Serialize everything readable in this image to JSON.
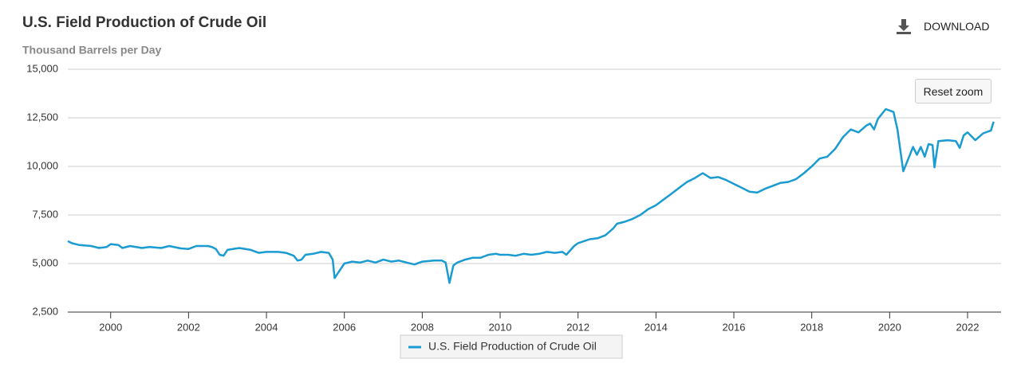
{
  "chart_data": {
    "type": "line",
    "title": "U.S. Field Production of Crude Oil",
    "subtitle": "Thousand Barrels per Day",
    "x": [
      1998.9,
      1999.0,
      1999.2,
      1999.5,
      1999.7,
      1999.9,
      2000.0,
      2000.2,
      2000.3,
      2000.5,
      2000.8,
      2001.0,
      2001.3,
      2001.5,
      2001.8,
      2002.0,
      2002.2,
      2002.5,
      2002.6,
      2002.7,
      2002.8,
      2002.9,
      2003.0,
      2003.3,
      2003.6,
      2003.8,
      2004.0,
      2004.3,
      2004.5,
      2004.7,
      2004.8,
      2004.9,
      2005.0,
      2005.2,
      2005.4,
      2005.6,
      2005.7,
      2005.75,
      2005.9,
      2006.0,
      2006.2,
      2006.4,
      2006.6,
      2006.8,
      2007.0,
      2007.2,
      2007.4,
      2007.6,
      2007.8,
      2008.0,
      2008.3,
      2008.5,
      2008.6,
      2008.7,
      2008.8,
      2008.9,
      2009.1,
      2009.3,
      2009.5,
      2009.7,
      2009.9,
      2010.0,
      2010.2,
      2010.4,
      2010.6,
      2010.8,
      2011.0,
      2011.2,
      2011.4,
      2011.6,
      2011.7,
      2011.9,
      2012.0,
      2012.3,
      2012.5,
      2012.7,
      2012.9,
      2013.0,
      2013.2,
      2013.4,
      2013.6,
      2013.8,
      2014.0,
      2014.2,
      2014.4,
      2014.6,
      2014.8,
      2015.0,
      2015.2,
      2015.4,
      2015.6,
      2015.8,
      2016.0,
      2016.2,
      2016.4,
      2016.6,
      2016.8,
      2017.0,
      2017.2,
      2017.4,
      2017.6,
      2017.8,
      2018.0,
      2018.2,
      2018.4,
      2018.6,
      2018.8,
      2019.0,
      2019.2,
      2019.4,
      2019.5,
      2019.6,
      2019.7,
      2019.9,
      2020.1,
      2020.2,
      2020.35,
      2020.5,
      2020.6,
      2020.7,
      2020.8,
      2020.9,
      2021.0,
      2021.1,
      2021.15,
      2021.25,
      2021.5,
      2021.7,
      2021.8,
      2021.9,
      2022.0,
      2022.2,
      2022.4,
      2022.6,
      2022.67
    ],
    "series": [
      {
        "name": "U.S. Field Production of Crude Oil",
        "color": "#1a9bd1",
        "values": [
          6150,
          6050,
          5950,
          5900,
          5800,
          5850,
          6000,
          5950,
          5800,
          5900,
          5800,
          5850,
          5800,
          5900,
          5780,
          5750,
          5900,
          5900,
          5850,
          5750,
          5450,
          5400,
          5700,
          5800,
          5700,
          5550,
          5600,
          5600,
          5550,
          5400,
          5150,
          5200,
          5450,
          5500,
          5600,
          5550,
          5200,
          4250,
          4700,
          5000,
          5100,
          5050,
          5150,
          5050,
          5200,
          5100,
          5150,
          5050,
          4950,
          5100,
          5150,
          5150,
          5050,
          4000,
          4900,
          5050,
          5200,
          5300,
          5300,
          5450,
          5500,
          5450,
          5450,
          5400,
          5500,
          5450,
          5500,
          5600,
          5550,
          5600,
          5450,
          5900,
          6050,
          6250,
          6300,
          6450,
          6800,
          7050,
          7150,
          7300,
          7500,
          7800,
          8000,
          8300,
          8600,
          8900,
          9200,
          9400,
          9650,
          9400,
          9450,
          9300,
          9100,
          8900,
          8700,
          8650,
          8850,
          9000,
          9150,
          9200,
          9350,
          9650,
          10000,
          10400,
          10500,
          10900,
          11500,
          11900,
          11750,
          12100,
          12200,
          11900,
          12450,
          12950,
          12800,
          11900,
          9750,
          10500,
          11000,
          10600,
          11000,
          10500,
          11150,
          11100,
          9950,
          11300,
          11350,
          11300,
          10950,
          11600,
          11750,
          11350,
          11700,
          11850,
          12300
        ]
      }
    ],
    "xlim": [
      1998.9,
      2022.86
    ],
    "xticks": [
      2000,
      2002,
      2004,
      2006,
      2008,
      2010,
      2012,
      2014,
      2016,
      2018,
      2020,
      2022
    ],
    "ylim": [
      2500,
      15000
    ],
    "yticks": [
      {
        "value": 2500,
        "label": "2,500"
      },
      {
        "value": 5000,
        "label": "5,000"
      },
      {
        "value": 7500,
        "label": "7,500"
      },
      {
        "value": 10000,
        "label": "10,000"
      },
      {
        "value": 12500,
        "label": "12,500"
      },
      {
        "value": 15000,
        "label": "15,000"
      }
    ],
    "grid": true
  },
  "toolbar": {
    "download": "DOWNLOAD",
    "reset_zoom": "Reset zoom"
  }
}
